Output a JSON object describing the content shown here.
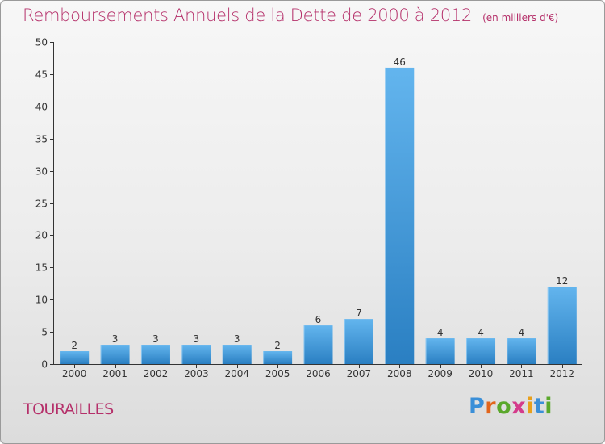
{
  "title": "Remboursements Annuels de la Dette de 2000 à 2012",
  "unit": "(en milliers d'€)",
  "place": "TOURAILLES",
  "brand": "Proxiti",
  "chart_data": {
    "type": "bar",
    "title": "Remboursements Annuels de la Dette de 2000 à 2012",
    "subtitle": "(en milliers d'€)",
    "categories": [
      "2000",
      "2001",
      "2002",
      "2003",
      "2004",
      "2005",
      "2006",
      "2007",
      "2008",
      "2009",
      "2010",
      "2011",
      "2012"
    ],
    "values": [
      2,
      3,
      3,
      3,
      3,
      2,
      6,
      7,
      46,
      4,
      4,
      4,
      12
    ],
    "data_labels": [
      "2",
      "3",
      "3",
      "3",
      "3",
      "2",
      "6",
      "7",
      "46",
      "4",
      "4",
      "4",
      "12"
    ],
    "xlabel": "",
    "ylabel": "",
    "ylim": [
      0,
      50
    ],
    "yticks": [
      0,
      5,
      10,
      15,
      20,
      25,
      30,
      35,
      40,
      45,
      50
    ],
    "grid": false,
    "legend": "none",
    "colors": {
      "bar_light": "#63b5ee",
      "bar_dark": "#2a7fc2",
      "title": "#b5306a"
    }
  }
}
